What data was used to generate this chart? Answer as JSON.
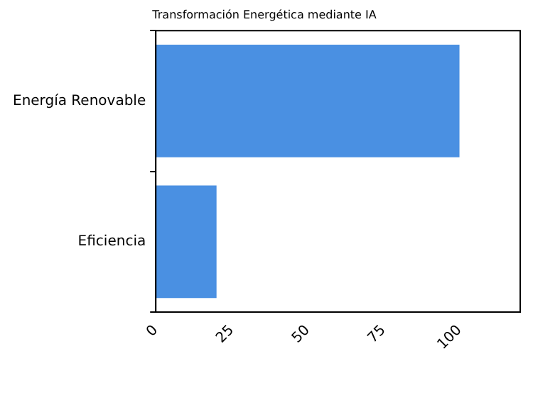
{
  "chart_data": {
    "type": "bar",
    "orientation": "horizontal",
    "title": "Transformación Energética mediante IA",
    "categories": [
      "Energía Renovable",
      "Eficiencia"
    ],
    "values": [
      100,
      20
    ],
    "color": "#4a90e2",
    "xlim": [
      0,
      120
    ],
    "xticks": [
      0,
      25,
      50,
      75,
      100
    ],
    "grid": false,
    "legend": false
  }
}
